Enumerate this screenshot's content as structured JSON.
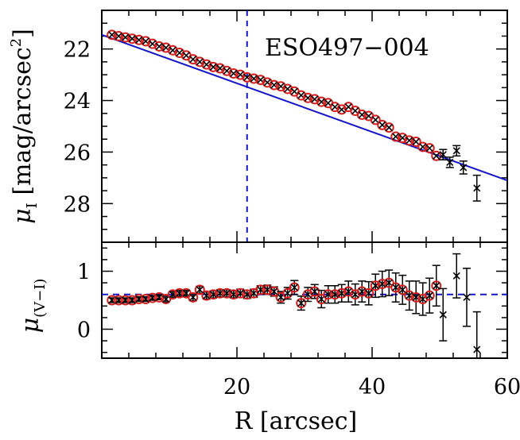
{
  "chart_data": [
    {
      "type": "scatter",
      "panel": "top",
      "annotation": "ESO497−004",
      "ylabel_prefix": "μ",
      "ylabel_sub": "I",
      "ylabel_rest": " [mag/arcsec",
      "ylabel_sup": "2",
      "ylabel_close": "]",
      "xlim": [
        0,
        60
      ],
      "ylim": [
        29.5,
        20.5
      ],
      "y_inverted": true,
      "yticks": [
        22,
        24,
        26,
        28
      ],
      "ytick_labels": [
        "22",
        "24",
        "26",
        "28"
      ],
      "vline_x": 21.5,
      "fit_line": {
        "x": [
          0,
          60
        ],
        "y": [
          21.45,
          27.1
        ],
        "color": "#1414c8"
      },
      "series": [
        {
          "marker": "circle+cross",
          "color": "#d62020",
          "points": [
            {
              "x": 1.5,
              "y": 21.45
            },
            {
              "x": 2.5,
              "y": 21.5
            },
            {
              "x": 3.5,
              "y": 21.55
            },
            {
              "x": 4.5,
              "y": 21.6
            },
            {
              "x": 5.5,
              "y": 21.65
            },
            {
              "x": 6.5,
              "y": 21.7
            },
            {
              "x": 7.5,
              "y": 21.8
            },
            {
              "x": 8.5,
              "y": 21.9
            },
            {
              "x": 9.5,
              "y": 21.95
            },
            {
              "x": 10.5,
              "y": 22.05
            },
            {
              "x": 11.5,
              "y": 22.15
            },
            {
              "x": 12.5,
              "y": 22.25
            },
            {
              "x": 13.5,
              "y": 22.4
            },
            {
              "x": 14.5,
              "y": 22.5
            },
            {
              "x": 15.5,
              "y": 22.6
            },
            {
              "x": 16.5,
              "y": 22.7
            },
            {
              "x": 17.5,
              "y": 22.75
            },
            {
              "x": 18.5,
              "y": 22.85
            },
            {
              "x": 19.5,
              "y": 22.95
            },
            {
              "x": 20.5,
              "y": 23.0
            },
            {
              "x": 21.5,
              "y": 23.1
            },
            {
              "x": 22.5,
              "y": 23.15
            },
            {
              "x": 23.5,
              "y": 23.2
            },
            {
              "x": 24.5,
              "y": 23.3
            },
            {
              "x": 25.5,
              "y": 23.4
            },
            {
              "x": 26.5,
              "y": 23.45
            },
            {
              "x": 27.5,
              "y": 23.55
            },
            {
              "x": 28.5,
              "y": 23.65
            },
            {
              "x": 29.5,
              "y": 23.8
            },
            {
              "x": 30.5,
              "y": 23.9
            },
            {
              "x": 31.5,
              "y": 23.95
            },
            {
              "x": 32.5,
              "y": 24.05
            },
            {
              "x": 33.5,
              "y": 24.1
            },
            {
              "x": 34.5,
              "y": 24.25
            },
            {
              "x": 35.5,
              "y": 24.35
            },
            {
              "x": 36.5,
              "y": 24.25
            },
            {
              "x": 37.5,
              "y": 24.4
            },
            {
              "x": 38.5,
              "y": 24.55
            },
            {
              "x": 39.5,
              "y": 24.6
            },
            {
              "x": 40.5,
              "y": 24.75
            },
            {
              "x": 41.5,
              "y": 24.95
            },
            {
              "x": 42.5,
              "y": 25.05
            },
            {
              "x": 43.5,
              "y": 25.4
            },
            {
              "x": 44.5,
              "y": 25.45
            },
            {
              "x": 45.5,
              "y": 25.55
            },
            {
              "x": 46.5,
              "y": 25.6
            },
            {
              "x": 47.5,
              "y": 25.8
            },
            {
              "x": 48.5,
              "y": 25.85
            },
            {
              "x": 49.5,
              "y": 26.15
            }
          ]
        },
        {
          "marker": "x-errorbar",
          "color": "#000000",
          "points": [
            {
              "x": 50.5,
              "y": 26.1,
              "err": 0.2
            },
            {
              "x": 51.5,
              "y": 26.4,
              "err": 0.2
            },
            {
              "x": 52.5,
              "y": 25.95,
              "err": 0.2
            },
            {
              "x": 53.5,
              "y": 26.6,
              "err": 0.25
            },
            {
              "x": 55.5,
              "y": 27.4,
              "err": 0.5
            }
          ]
        }
      ]
    },
    {
      "type": "scatter",
      "panel": "bottom",
      "ylabel_prefix": "μ",
      "ylabel_sub": "(V−I)",
      "xlabel": "R [arcsec]",
      "xlim": [
        0,
        60
      ],
      "ylim": [
        -0.5,
        1.5
      ],
      "xticks": [
        20,
        40,
        60
      ],
      "xtick_labels": [
        "20",
        "40",
        "60"
      ],
      "yticks": [
        0,
        1
      ],
      "ytick_labels": [
        "0",
        "1"
      ],
      "fit_line": {
        "x": [
          0,
          60
        ],
        "y": [
          0.6,
          0.6
        ],
        "color": "#1414c8",
        "style": "dashed"
      },
      "series": [
        {
          "marker": "circle+cross",
          "color": "#d62020",
          "points": [
            {
              "x": 1.5,
              "y": 0.5,
              "err": 0.04
            },
            {
              "x": 2.5,
              "y": 0.5,
              "err": 0.04
            },
            {
              "x": 3.5,
              "y": 0.5,
              "err": 0.04
            },
            {
              "x": 4.5,
              "y": 0.5,
              "err": 0.04
            },
            {
              "x": 5.5,
              "y": 0.52,
              "err": 0.04
            },
            {
              "x": 6.5,
              "y": 0.52,
              "err": 0.04
            },
            {
              "x": 7.5,
              "y": 0.54,
              "err": 0.04
            },
            {
              "x": 8.5,
              "y": 0.55,
              "err": 0.04
            },
            {
              "x": 9.5,
              "y": 0.52,
              "err": 0.05
            },
            {
              "x": 10.5,
              "y": 0.6,
              "err": 0.05
            },
            {
              "x": 11.5,
              "y": 0.62,
              "err": 0.05
            },
            {
              "x": 12.5,
              "y": 0.62,
              "err": 0.05
            },
            {
              "x": 13.5,
              "y": 0.55,
              "err": 0.06
            },
            {
              "x": 14.5,
              "y": 0.68,
              "err": 0.06
            },
            {
              "x": 15.5,
              "y": 0.58,
              "err": 0.06
            },
            {
              "x": 16.5,
              "y": 0.6,
              "err": 0.06
            },
            {
              "x": 17.5,
              "y": 0.62,
              "err": 0.06
            },
            {
              "x": 18.5,
              "y": 0.62,
              "err": 0.06
            },
            {
              "x": 19.5,
              "y": 0.6,
              "err": 0.06
            },
            {
              "x": 20.5,
              "y": 0.62,
              "err": 0.07
            },
            {
              "x": 21.5,
              "y": 0.6,
              "err": 0.07
            },
            {
              "x": 22.5,
              "y": 0.62,
              "err": 0.07
            },
            {
              "x": 23.5,
              "y": 0.68,
              "err": 0.07
            },
            {
              "x": 24.5,
              "y": 0.68,
              "err": 0.08
            },
            {
              "x": 25.5,
              "y": 0.65,
              "err": 0.08
            },
            {
              "x": 26.5,
              "y": 0.55,
              "err": 0.1
            },
            {
              "x": 27.5,
              "y": 0.62,
              "err": 0.1
            },
            {
              "x": 28.5,
              "y": 0.72,
              "err": 0.12
            },
            {
              "x": 29.5,
              "y": 0.45,
              "err": 0.12
            },
            {
              "x": 30.5,
              "y": 0.6,
              "err": 0.12
            },
            {
              "x": 31.5,
              "y": 0.65,
              "err": 0.12
            },
            {
              "x": 32.5,
              "y": 0.52,
              "err": 0.15
            },
            {
              "x": 33.5,
              "y": 0.6,
              "err": 0.15
            },
            {
              "x": 34.5,
              "y": 0.6,
              "err": 0.15
            },
            {
              "x": 35.5,
              "y": 0.62,
              "err": 0.15
            },
            {
              "x": 36.5,
              "y": 0.65,
              "err": 0.18
            },
            {
              "x": 37.5,
              "y": 0.6,
              "err": 0.18
            },
            {
              "x": 38.5,
              "y": 0.65,
              "err": 0.18
            },
            {
              "x": 39.5,
              "y": 0.62,
              "err": 0.2
            },
            {
              "x": 40.5,
              "y": 0.75,
              "err": 0.2
            },
            {
              "x": 41.5,
              "y": 0.78,
              "err": 0.22
            },
            {
              "x": 42.5,
              "y": 0.8,
              "err": 0.22
            },
            {
              "x": 43.5,
              "y": 0.72,
              "err": 0.25
            },
            {
              "x": 44.5,
              "y": 0.68,
              "err": 0.25
            },
            {
              "x": 45.5,
              "y": 0.58,
              "err": 0.25
            },
            {
              "x": 46.5,
              "y": 0.55,
              "err": 0.28
            },
            {
              "x": 47.5,
              "y": 0.52,
              "err": 0.28
            },
            {
              "x": 48.5,
              "y": 0.58,
              "err": 0.3
            },
            {
              "x": 49.5,
              "y": 0.75,
              "err": 0.35
            }
          ]
        },
        {
          "marker": "x-errorbar",
          "color": "#000000",
          "points": [
            {
              "x": 50.5,
              "y": 0.25,
              "err": 0.45
            },
            {
              "x": 52.5,
              "y": 0.92,
              "err": 0.38
            },
            {
              "x": 54.0,
              "y": 0.55,
              "err": 0.5
            },
            {
              "x": 55.5,
              "y": -0.35,
              "err": 0.65
            }
          ]
        }
      ]
    }
  ]
}
